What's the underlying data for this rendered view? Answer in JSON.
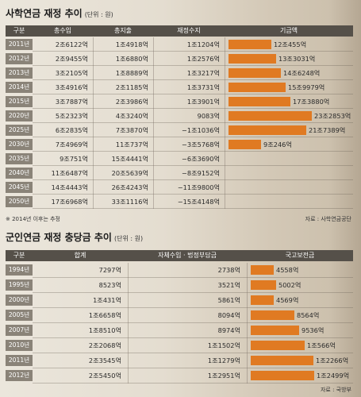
{
  "pension": {
    "title": "사학연금 재정 추이",
    "unit": "(단위 : 원)",
    "headers": [
      "구분",
      "총수입",
      "총지출",
      "재정수지",
      "기금액"
    ],
    "rows": [
      {
        "year": "2011년",
        "income": "2조6122억",
        "expense": "1조4918억",
        "balance": "1조1204억",
        "fund": "12조455억",
        "fund_value": 12.0455
      },
      {
        "year": "2012년",
        "income": "2조9455억",
        "expense": "1조6880억",
        "balance": "1조2576억",
        "fund": "13조3031억",
        "fund_value": 13.3031
      },
      {
        "year": "2013년",
        "income": "3조2105억",
        "expense": "1조8889억",
        "balance": "1조3217억",
        "fund": "14조6248억",
        "fund_value": 14.6248
      },
      {
        "year": "2014년",
        "income": "3조4916억",
        "expense": "2조1185억",
        "balance": "1조3731억",
        "fund": "15조9979억",
        "fund_value": 15.9979
      },
      {
        "year": "2015년",
        "income": "3조7887억",
        "expense": "2조3986억",
        "balance": "1조3901억",
        "fund": "17조3880억",
        "fund_value": 17.388
      },
      {
        "year": "2020년",
        "income": "5조2323억",
        "expense": "4조3240억",
        "balance": "9083억",
        "fund": "23조2853억",
        "fund_value": 23.2853
      },
      {
        "year": "2025년",
        "income": "6조2835억",
        "expense": "7조3870억",
        "balance": "−1조1036억",
        "fund": "21조7389억",
        "fund_value": 21.7389
      },
      {
        "year": "2030년",
        "income": "7조4969억",
        "expense": "11조737억",
        "balance": "−3조5768억",
        "fund": "9조246억",
        "fund_value": 9.0246
      },
      {
        "year": "2035년",
        "income": "9조751억",
        "expense": "15조4441억",
        "balance": "−6조3690억",
        "fund": "",
        "fund_value": 0
      },
      {
        "year": "2040년",
        "income": "11조6487억",
        "expense": "20조5639억",
        "balance": "−8조9152억",
        "fund": "",
        "fund_value": 0
      },
      {
        "year": "2045년",
        "income": "14조4443억",
        "expense": "26조4243억",
        "balance": "−11조9800억",
        "fund": "",
        "fund_value": 0
      },
      {
        "year": "2050년",
        "income": "17조6968억",
        "expense": "33조1116억",
        "balance": "−15조4148억",
        "fund": "",
        "fund_value": 0
      }
    ],
    "note": "※ 2014년 이후는 추정",
    "source": "자료 : 사학연금공단"
  },
  "military": {
    "title": "군인연금 재정 충당금 추이",
    "unit": "(단위 : 원)",
    "headers": [
      "구분",
      "합계",
      "자체수입 · 법정부담금",
      "국고보전금"
    ],
    "rows": [
      {
        "year": "1994년",
        "total": "7297억",
        "self": "2738억",
        "subsidy": "4558억",
        "subsidy_value": 4558
      },
      {
        "year": "1995년",
        "total": "8523억",
        "self": "3521억",
        "subsidy": "5002억",
        "subsidy_value": 5002
      },
      {
        "year": "2000년",
        "total": "1조431억",
        "self": "5861억",
        "subsidy": "4569억",
        "subsidy_value": 4569
      },
      {
        "year": "2005년",
        "total": "1조6658억",
        "self": "8094억",
        "subsidy": "8564억",
        "subsidy_value": 8564
      },
      {
        "year": "2007년",
        "total": "1조8510억",
        "self": "8974억",
        "subsidy": "9536억",
        "subsidy_value": 9536
      },
      {
        "year": "2010년",
        "total": "2조2068억",
        "self": "1조1502억",
        "subsidy": "1조566억",
        "subsidy_value": 10566
      },
      {
        "year": "2011년",
        "total": "2조3545억",
        "self": "1조1279억",
        "subsidy": "1조2266억",
        "subsidy_value": 12266
      },
      {
        "year": "2012년",
        "total": "2조5450억",
        "self": "1조2951억",
        "subsidy": "1조2499억",
        "subsidy_value": 12499
      }
    ],
    "source": "자료 : 국방부"
  },
  "colors": {
    "bar": "#e07a22",
    "header": "#555049",
    "year_label": "#8a8378"
  }
}
